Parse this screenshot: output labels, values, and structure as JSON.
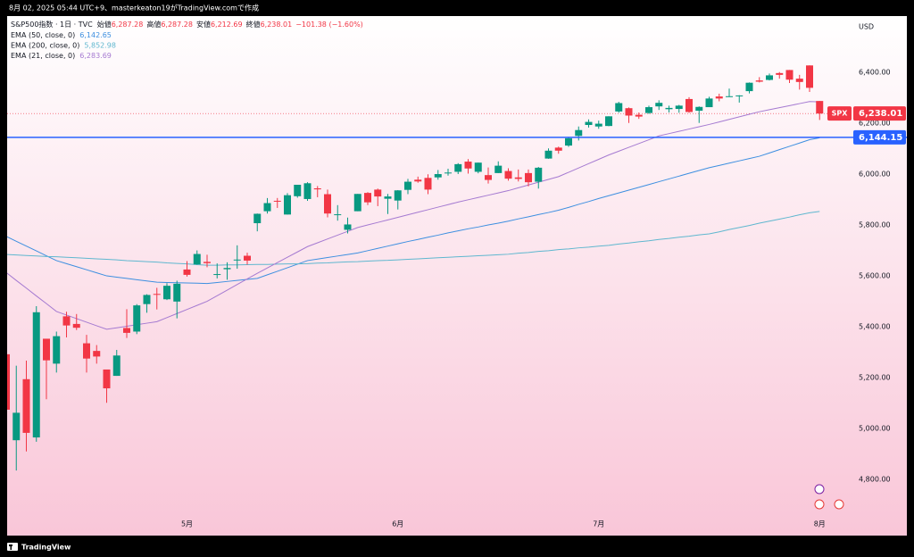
{
  "page": {
    "caption": "8月 02, 2025 05:44 UTC+9、masterkeaton19がTradingView.comで作成",
    "brand": "TradingView"
  },
  "chart_data": {
    "type": "candlestick",
    "title": "S&P500指数 · 1日 · TVC",
    "ohlc_legend": [
      {
        "label": "始値",
        "value": "6,287.28"
      },
      {
        "label": "高値",
        "value": "6,287.28"
      },
      {
        "label": "安値",
        "value": "6,212.69"
      },
      {
        "label": "終値",
        "value": "6,238.01"
      }
    ],
    "change": "−101.38 (−1.60%)",
    "currency": "USD",
    "categories": [
      null,
      null,
      null,
      null,
      null,
      null,
      null,
      null,
      null,
      null,
      null,
      null,
      null,
      null,
      null,
      null,
      null,
      null,
      "5月",
      null,
      null,
      null,
      null,
      null,
      null,
      null,
      null,
      null,
      null,
      null,
      null,
      null,
      null,
      null,
      null,
      null,
      null,
      null,
      null,
      "6月",
      null,
      null,
      null,
      null,
      null,
      null,
      null,
      null,
      null,
      null,
      null,
      null,
      null,
      null,
      null,
      null,
      null,
      null,
      null,
      "7月",
      null,
      null,
      null,
      null,
      null,
      null,
      null,
      null,
      null,
      null,
      null,
      null,
      null,
      null,
      null,
      null,
      null,
      null,
      null,
      null,
      null,
      "8月"
    ],
    "open": [
      5292,
      4954,
      5194,
      4965,
      5353,
      5255,
      5441,
      5411,
      5335,
      5305,
      5232,
      5207,
      5395,
      5381,
      5489,
      5529,
      5508,
      5499,
      5625,
      5645,
      5655,
      5606,
      5626,
      5663,
      5679,
      5807,
      5854,
      5895,
      5841,
      5913,
      5902,
      5944,
      5921,
      5841,
      5781,
      5854,
      5926,
      5939,
      5903,
      5896,
      5938,
      5978,
      5985,
      5987,
      6004,
      6009,
      6049,
      6009,
      5996,
      6004,
      6012,
      5987,
      6004,
      5970,
      6061,
      6104,
      6112,
      6150,
      6193,
      6187,
      6189,
      6246,
      6259,
      6233,
      6240,
      6266,
      6255,
      6256,
      6295,
      6249,
      6263,
      6305,
      6304,
      6306,
      6326,
      6368,
      6370,
      6397,
      6409,
      6375,
      6427,
      6287.28
    ],
    "high": [
      5292,
      5247,
      5267,
      5481,
      5353,
      5381,
      5459,
      5450,
      5368,
      5328,
      5232,
      5309,
      5469,
      5489,
      5528,
      5553,
      5571,
      5581,
      5658,
      5700,
      5683,
      5649,
      5653,
      5720,
      5691,
      5845,
      5906,
      5906,
      5925,
      5958,
      5968,
      5953,
      5939,
      5878,
      5829,
      5922,
      5929,
      5943,
      5922,
      5937,
      5981,
      5990,
      5999,
      6016,
      6021,
      6043,
      6059,
      6045,
      6026,
      6050,
      6023,
      6018,
      6018,
      6028,
      6101,
      6108,
      6146,
      6187,
      6215,
      6210,
      6227,
      6284,
      6262,
      6242,
      6269,
      6290,
      6269,
      6272,
      6302,
      6266,
      6304,
      6316,
      6336,
      6310,
      6360,
      6381,
      6395,
      6401,
      6409,
      6390,
      6427,
      6287.28
    ],
    "low": [
      5069,
      4835,
      4910,
      4948,
      5115,
      5220,
      5358,
      5387,
      5220,
      5255,
      5101,
      5207,
      5356,
      5371,
      5455,
      5468,
      5505,
      5433,
      5597,
      5644,
      5634,
      5590,
      5585,
      5628,
      5644,
      5775,
      5845,
      5867,
      5841,
      5907,
      5895,
      5909,
      5830,
      5817,
      5767,
      5854,
      5878,
      5874,
      5843,
      5861,
      5921,
      5966,
      5921,
      5978,
      5994,
      6000,
      6002,
      6003,
      5963,
      6004,
      5974,
      5971,
      5952,
      5943,
      6060,
      6080,
      6107,
      6132,
      6183,
      6178,
      6188,
      6241,
      6201,
      6217,
      6237,
      6252,
      6242,
      6241,
      6241,
      6201,
      6263,
      6286,
      6303,
      6281,
      6317,
      6360,
      6368,
      6375,
      6358,
      6332,
      6323,
      6212.69
    ],
    "close": [
      5074,
      5062,
      4983,
      5457,
      5268,
      5363,
      5405,
      5396,
      5275,
      5283,
      5158,
      5287,
      5376,
      5484,
      5525,
      5528,
      5561,
      5569,
      5604,
      5686,
      5650,
      5607,
      5631,
      5664,
      5660,
      5844,
      5886,
      5892,
      5917,
      5958,
      5964,
      5940,
      5845,
      5842,
      5802,
      5922,
      5889,
      5912,
      5912,
      5936,
      5970,
      5971,
      5939,
      6000,
      6006,
      6039,
      6022,
      6045,
      5977,
      6033,
      5982,
      5981,
      5968,
      6025,
      6092,
      6092,
      6141,
      6173,
      6205,
      6198,
      6227,
      6279,
      6230,
      6226,
      6263,
      6280,
      6260,
      6269,
      6244,
      6264,
      6297,
      6297,
      6306,
      6309,
      6359,
      6363,
      6388,
      6390,
      6371,
      6362,
      6339,
      6238.01
    ],
    "up_color": "#089981",
    "down_color": "#f23645",
    "series": [
      {
        "name": "EMA (50, close, 0)",
        "legend_value": "6,142.65",
        "color": "#3d8fe0",
        "values": [
          5755,
          5736,
          5717,
          5698,
          5679,
          5660,
          5648,
          5636,
          5624,
          5612,
          5600,
          5595,
          5590,
          5585,
          5580,
          5575,
          5574,
          5573,
          5572,
          5571,
          5570,
          5574,
          5578,
          5582,
          5586,
          5590,
          5604,
          5618,
          5632,
          5646,
          5660,
          5666,
          5672,
          5678,
          5684,
          5690,
          5699,
          5708,
          5717,
          5726,
          5735,
          5743,
          5752,
          5760,
          5769,
          5777,
          5785,
          5792,
          5800,
          5807,
          5815,
          5824,
          5832,
          5841,
          5849,
          5858,
          5869,
          5881,
          5892,
          5904,
          5915,
          5926,
          5937,
          5948,
          5959,
          5970,
          5981,
          5992,
          6003,
          6014,
          6025,
          6034,
          6043,
          6052,
          6061,
          6070,
          6083,
          6096,
          6109,
          6122,
          6135,
          6142.65
        ]
      },
      {
        "name": "EMA (200, close, 0)",
        "legend_value": "5,852.98",
        "color": "#5fb7cf",
        "values": [
          5684,
          5682,
          5680,
          5678,
          5676,
          5675,
          5673,
          5671,
          5669,
          5667,
          5665,
          5663,
          5660,
          5658,
          5656,
          5654,
          5651,
          5649,
          5647,
          5644,
          5642,
          5642,
          5643,
          5643,
          5644,
          5645,
          5645,
          5646,
          5647,
          5647,
          5648,
          5650,
          5651,
          5653,
          5655,
          5656,
          5658,
          5660,
          5661,
          5663,
          5665,
          5667,
          5669,
          5671,
          5673,
          5675,
          5677,
          5679,
          5681,
          5683,
          5685,
          5689,
          5692,
          5696,
          5699,
          5703,
          5706,
          5710,
          5713,
          5717,
          5720,
          5725,
          5729,
          5734,
          5738,
          5743,
          5747,
          5752,
          5756,
          5761,
          5765,
          5773,
          5782,
          5790,
          5798,
          5807,
          5815,
          5823,
          5831,
          5840,
          5848,
          5852.98
        ]
      },
      {
        "name": "EMA (21, close, 0)",
        "legend_value": "6,283.69",
        "color": "#a57ad1",
        "values": [
          5613,
          5582,
          5552,
          5521,
          5491,
          5460,
          5446,
          5432,
          5418,
          5404,
          5390,
          5396,
          5402,
          5408,
          5414,
          5420,
          5436,
          5452,
          5468,
          5484,
          5500,
          5522,
          5544,
          5566,
          5588,
          5610,
          5631,
          5652,
          5673,
          5694,
          5715,
          5730,
          5745,
          5760,
          5775,
          5790,
          5800,
          5810,
          5820,
          5830,
          5840,
          5850,
          5860,
          5870,
          5880,
          5890,
          5899,
          5908,
          5917,
          5926,
          5935,
          5946,
          5957,
          5968,
          5979,
          5990,
          6007,
          6024,
          6041,
          6058,
          6075,
          6090,
          6105,
          6120,
          6135,
          6150,
          6159,
          6168,
          6177,
          6186,
          6195,
          6205,
          6215,
          6225,
          6235,
          6245,
          6253,
          6261,
          6269,
          6277,
          6285,
          6283.69
        ]
      }
    ],
    "ylim": [
      4667,
      6621
    ],
    "yticks": [
      {
        "value": 4800,
        "label": "4,800.00"
      },
      {
        "value": 5000,
        "label": "5,000.00"
      },
      {
        "value": 5200,
        "label": "5,200.00"
      },
      {
        "value": 5400,
        "label": "5,400.00"
      },
      {
        "value": 5600,
        "label": "5,600.00"
      },
      {
        "value": 5800,
        "label": "5,800.00"
      },
      {
        "value": 6000,
        "label": "6,000.00"
      },
      {
        "value": 6200,
        "label": "6,200.00"
      },
      {
        "value": 6400,
        "label": "6,400.00"
      }
    ],
    "grid": false,
    "last_price": {
      "symbol": "SPX",
      "value": 6238.01,
      "label": "6,238.01"
    },
    "hline": {
      "value": 6144.15,
      "label": "6,144.15",
      "color": "#2962ff"
    }
  }
}
